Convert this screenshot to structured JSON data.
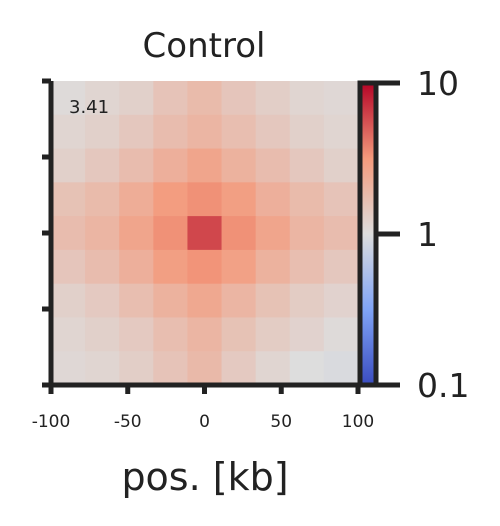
{
  "chart_data": {
    "type": "heatmap",
    "title": "Control",
    "xlabel": "pos. [kb]",
    "ylabel": "",
    "x_ticks": [
      "-100",
      "-50",
      "0",
      "50",
      "100"
    ],
    "y_ticks_labeled": false,
    "annotation": "3.41",
    "colorbar": {
      "scale": "log",
      "min": 0.1,
      "max": 10,
      "ticks": [
        "10",
        "1",
        "0.1"
      ],
      "colormap": "coolwarm"
    },
    "matrix": [
      [
        1.05,
        1.15,
        1.25,
        1.55,
        1.8,
        1.5,
        1.3,
        1.15,
        1.1
      ],
      [
        1.15,
        1.25,
        1.45,
        1.75,
        2.0,
        1.7,
        1.45,
        1.25,
        1.15
      ],
      [
        1.25,
        1.45,
        1.75,
        2.2,
        2.6,
        2.1,
        1.75,
        1.45,
        1.25
      ],
      [
        1.6,
        1.8,
        2.3,
        3.0,
        3.4,
        2.9,
        2.2,
        1.8,
        1.55
      ],
      [
        1.75,
        2.0,
        2.6,
        3.4,
        6.0,
        3.4,
        2.6,
        2.0,
        1.75
      ],
      [
        1.5,
        1.75,
        2.2,
        2.9,
        3.3,
        2.8,
        2.1,
        1.7,
        1.45
      ],
      [
        1.25,
        1.4,
        1.7,
        2.1,
        2.5,
        2.0,
        1.6,
        1.35,
        1.2
      ],
      [
        1.15,
        1.25,
        1.4,
        1.7,
        2.0,
        1.6,
        1.35,
        1.2,
        1.05
      ],
      [
        1.1,
        1.15,
        1.3,
        1.55,
        1.85,
        1.4,
        1.15,
        1.0,
        0.95
      ]
    ]
  }
}
